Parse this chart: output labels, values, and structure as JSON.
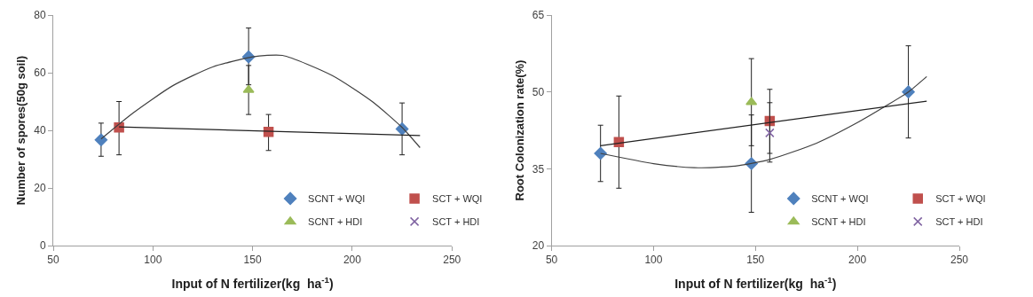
{
  "chart_data": [
    {
      "type": "scatter",
      "xlabel": "Input of N fertilizer(kg  ha$^{-1}$)",
      "ylabel": "Number of spores(50g soil)",
      "xlim": [
        50,
        250
      ],
      "xticks": [
        50,
        100,
        150,
        200,
        250
      ],
      "ylim": [
        0,
        80
      ],
      "yticks": [
        0,
        20,
        40,
        60,
        80
      ],
      "legend": "bottom right",
      "series": [
        {
          "name": "SCNT + WQI",
          "marker": "diamond",
          "color": "#4f81bd",
          "x": [
            74,
            148,
            225
          ],
          "values": [
            36.7,
            65.5,
            40.5
          ],
          "errors": [
            [
              31,
              42.5
            ],
            [
              55.8,
              75.5
            ],
            [
              31.5,
              49.5
            ]
          ]
        },
        {
          "name": "SCT + WQI",
          "marker": "square",
          "color": "#c0504d",
          "x": [
            83,
            158
          ],
          "values": [
            41,
            39.5
          ],
          "errors": [
            [
              31.5,
              50
            ],
            [
              33,
              45.5
            ]
          ]
        },
        {
          "name": "SCNT + HDI",
          "marker": "triangle",
          "color": "#9bbb59",
          "x": [
            148
          ],
          "values": [
            54
          ],
          "errors": [
            [
              45.5,
              62.5
            ]
          ]
        },
        {
          "name": "SCT + HDI",
          "marker": "cross",
          "color": "#8064a2"
        },
        {
          "type": "line",
          "marker": "none",
          "color": "#404040",
          "x": [
            74,
            90,
            110,
            130,
            150,
            165,
            190,
            210,
            225,
            234
          ],
          "values": [
            37,
            46,
            55.5,
            62,
            65.5,
            66,
            59,
            50,
            41,
            34
          ]
        },
        {
          "type": "line",
          "marker": "none",
          "color": "#202020",
          "x": [
            83,
            234
          ],
          "values": [
            41.2,
            38.2
          ]
        }
      ]
    },
    {
      "type": "scatter",
      "xlabel": "Input of N fertilizer(kg  ha$^{-1}$)",
      "ylabel": "Root Colonization rate(%)",
      "xlim": [
        50,
        250
      ],
      "xticks": [
        50,
        100,
        150,
        200,
        250
      ],
      "ylim": [
        20,
        65
      ],
      "yticks": [
        20,
        35,
        50,
        65
      ],
      "legend": "bottom right",
      "series": [
        {
          "name": "SCNT + WQI",
          "marker": "diamond",
          "color": "#4f81bd",
          "x": [
            74,
            148,
            225
          ],
          "values": [
            38,
            36,
            50
          ],
          "errors": [
            [
              32.5,
              43.5
            ],
            [
              26.5,
              45.5
            ],
            [
              41,
              59
            ]
          ]
        },
        {
          "name": "SCT + WQI",
          "marker": "square",
          "color": "#c0504d",
          "x": [
            83,
            157
          ],
          "values": [
            40.2,
            44.3
          ],
          "errors": [
            [
              31.2,
              49.2
            ],
            [
              38,
              50.5
            ]
          ]
        },
        {
          "name": "SCNT + HDI",
          "marker": "triangle",
          "color": "#9bbb59",
          "x": [
            148
          ],
          "values": [
            48
          ],
          "errors": [
            [
              39.5,
              56.5
            ]
          ]
        },
        {
          "name": "SCT + HDI",
          "marker": "cross",
          "color": "#8064a2",
          "x": [
            157
          ],
          "values": [
            42
          ],
          "errors": [
            [
              36.3,
              47.9
            ]
          ]
        },
        {
          "type": "line",
          "marker": "none",
          "color": "#404040",
          "x": [
            74,
            100,
            120,
            140,
            157,
            180,
            200,
            215,
            225,
            234
          ],
          "values": [
            38,
            36,
            35.2,
            35.5,
            36.8,
            40,
            44,
            47.5,
            50,
            53
          ]
        },
        {
          "type": "line",
          "marker": "none",
          "color": "#202020",
          "x": [
            74,
            234
          ],
          "values": [
            39.5,
            48.2
          ]
        }
      ]
    }
  ]
}
